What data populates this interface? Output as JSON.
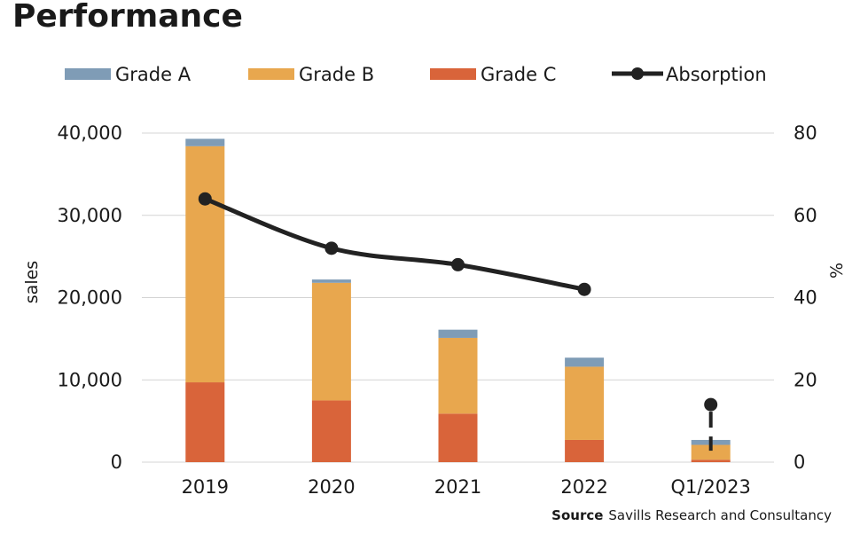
{
  "title": "Performance",
  "source": {
    "label": "Source",
    "text": "Savills Research and Consultancy"
  },
  "chart_data": {
    "type": "bar",
    "stacked": true,
    "categories": [
      "2019",
      "2020",
      "2021",
      "2022",
      "Q1/2023"
    ],
    "series": [
      {
        "name": "Grade C",
        "color": "#d9643a",
        "values": [
          9700,
          7500,
          5900,
          2700,
          300
        ]
      },
      {
        "name": "Grade B",
        "color": "#e8a74e",
        "values": [
          28700,
          14300,
          9200,
          8900,
          1800
        ]
      },
      {
        "name": "Grade A",
        "color": "#7f9cb6",
        "values": [
          900,
          400,
          1000,
          1100,
          600
        ]
      }
    ],
    "line_series": {
      "name": "Absorption",
      "color": "#222222",
      "axis": "right",
      "values": [
        64,
        52,
        48,
        42,
        14
      ]
    },
    "legend_order": [
      "Grade A",
      "Grade B",
      "Grade C",
      "Absorption"
    ],
    "legend_position": "top",
    "ylabel": "sales",
    "y2label": "%",
    "ylim": [
      0,
      40000
    ],
    "y2lim": [
      0,
      80
    ],
    "yticks": [
      "0",
      "10,000",
      "20,000",
      "30,000",
      "40,000"
    ],
    "y2ticks": [
      "0",
      "20",
      "40",
      "60",
      "80"
    ],
    "grid": true
  }
}
